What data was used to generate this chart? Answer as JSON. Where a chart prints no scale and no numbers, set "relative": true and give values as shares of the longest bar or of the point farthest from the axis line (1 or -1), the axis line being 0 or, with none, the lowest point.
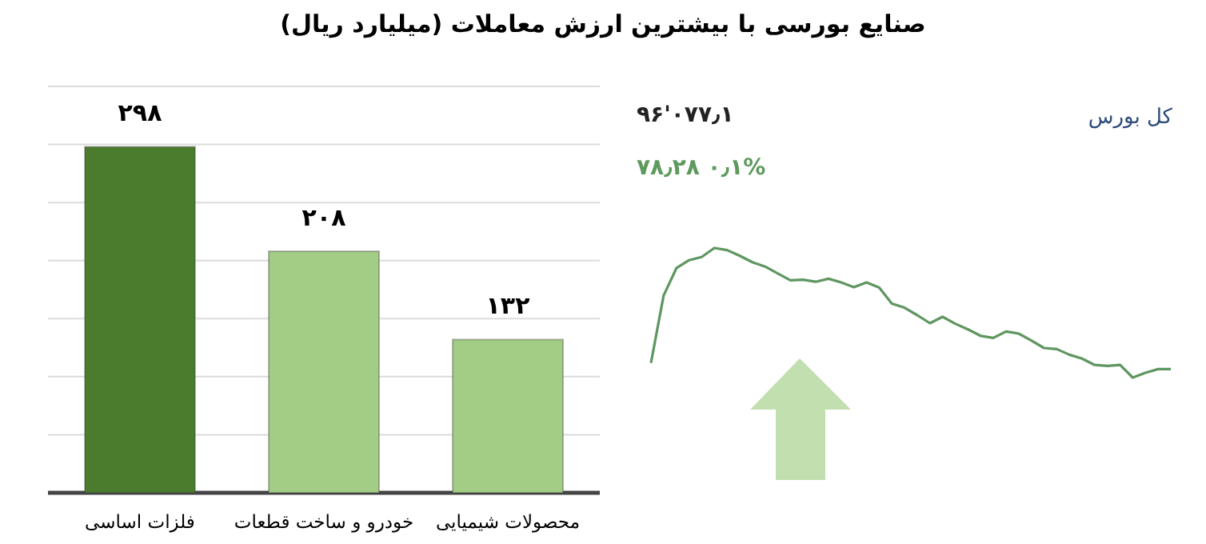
{
  "chart_data": [
    {
      "type": "bar",
      "title": "صنایع بورسی با بیشترین ارزش معاملات (میلیارد ریال)",
      "categories": [
        "فلزات اساسی",
        "خودرو و ساخت قطعات",
        "محصولات شیمیایی"
      ],
      "values": [
        298,
        208,
        132
      ],
      "colors": [
        "#4b7b2d",
        "#a3cc85",
        "#a3cc85"
      ],
      "value_labels": [
        "۲۹۸",
        "۲۰۸",
        "۱۳۲"
      ],
      "ylim": [
        0,
        350
      ],
      "yticks": [
        {
          "value": 0,
          "label": null
        },
        {
          "value": 50,
          "label": null
        },
        {
          "value": 100,
          "label": null
        },
        {
          "value": 150,
          "label": null
        },
        {
          "value": 200,
          "label": null
        },
        {
          "value": 250,
          "label": null
        },
        {
          "value": 300,
          "label": null
        },
        {
          "value": 350,
          "label": null
        }
      ],
      "grid": "y",
      "tick_labels": "x"
    },
    {
      "type": "line",
      "title": "کل بورس",
      "relative": true,
      "color": "#5e9660",
      "annotations": [
        "۹۶'۰۷۷٫۱",
        "۷۸٫۲۸  ۰٫۱%"
      ],
      "categories": [
        null,
        null,
        null,
        null,
        null,
        null,
        null,
        null,
        null,
        null,
        null,
        null,
        null,
        null,
        null,
        null,
        null,
        null,
        null,
        null,
        null,
        null,
        null,
        null,
        null,
        null,
        null,
        null,
        null,
        null,
        null,
        null,
        null,
        null,
        null,
        null,
        null,
        null,
        null,
        null,
        null,
        null
      ],
      "values": [
        0.114,
        0.633,
        0.845,
        0.906,
        0.931,
        1,
        0.984,
        0.939,
        0.89,
        0.857,
        0.804,
        0.751,
        0.755,
        0.739,
        0.763,
        0.735,
        0.698,
        0.735,
        0.694,
        0.571,
        0.539,
        0.482,
        0.42,
        0.469,
        0.416,
        0.371,
        0.322,
        0.306,
        0.355,
        0.339,
        0.286,
        0.229,
        0.22,
        0.176,
        0.147,
        0.098,
        0.09,
        0.098,
        0,
        0.037,
        0.065,
        0.065
      ]
    }
  ]
}
